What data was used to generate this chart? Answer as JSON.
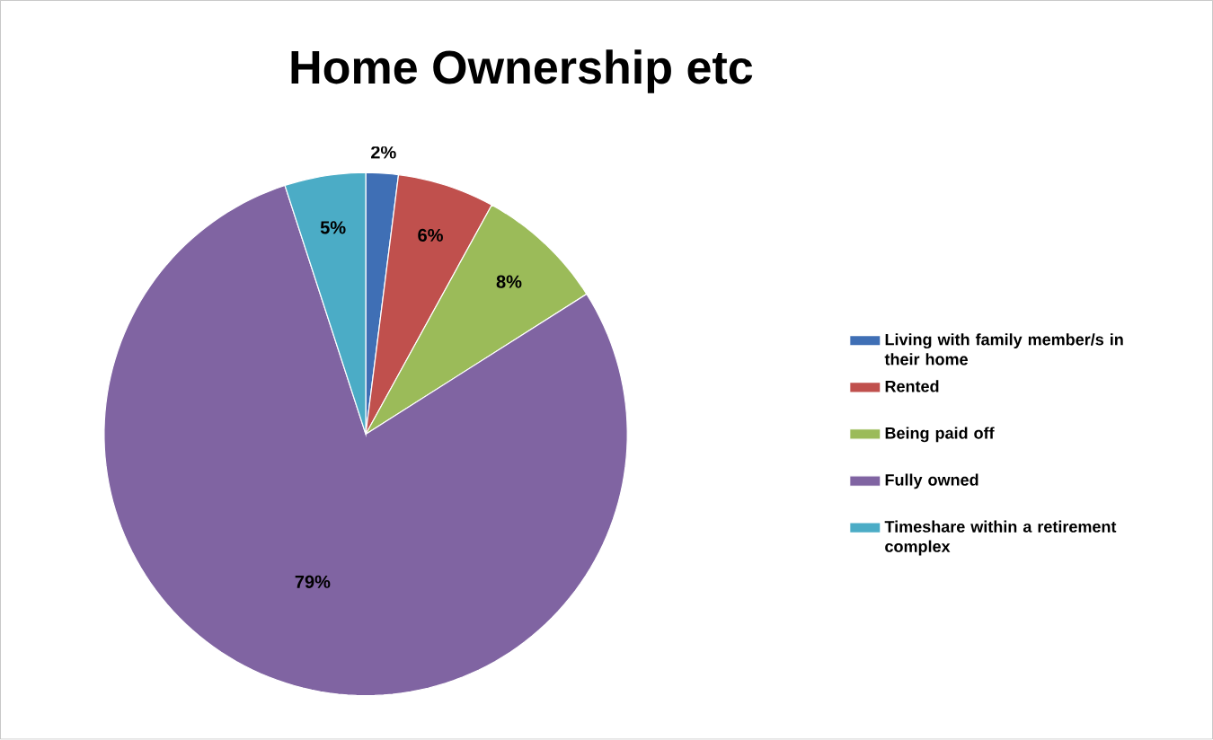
{
  "chart_data": {
    "type": "pie",
    "title": "Home Ownership etc",
    "categories": [
      "Living with family member/s in their home",
      "Rented",
      "Being paid off",
      "Fully owned",
      "Timeshare within a retirement complex"
    ],
    "values": [
      2,
      6,
      8,
      79,
      5
    ],
    "value_labels": [
      "2%",
      "6%",
      "8%",
      "79%",
      "5%"
    ],
    "colors": [
      "#3f6fb5",
      "#c0504d",
      "#9bbb59",
      "#8064a2",
      "#4bacc6"
    ],
    "legend": "right"
  }
}
